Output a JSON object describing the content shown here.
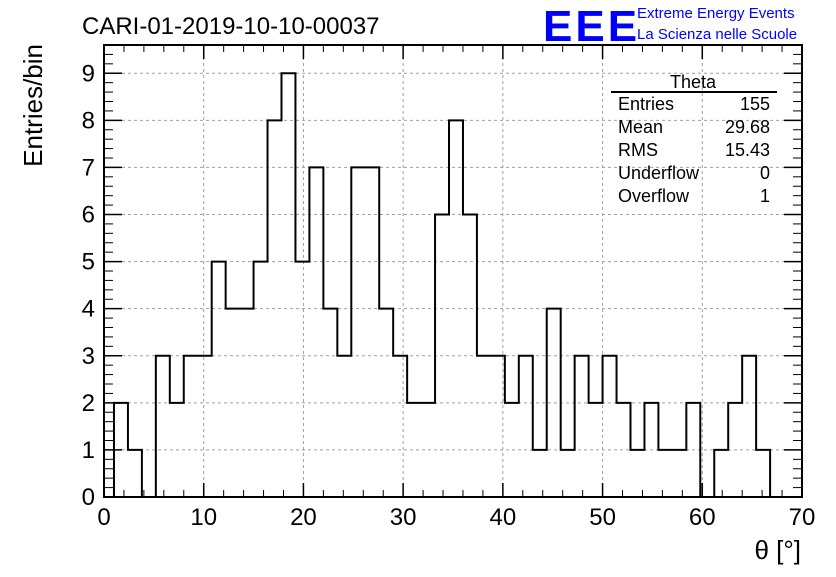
{
  "header": {
    "run_title": "CARI-01-2019-10-10-00037",
    "logo_text": "EEE",
    "logo_line1": "Extreme Energy Events",
    "logo_line2": "La Scienza nelle Scuole",
    "brand_color": "#0000ff"
  },
  "stats_box": {
    "title": "Theta",
    "rows": [
      {
        "label": "Entries",
        "value": "155"
      },
      {
        "label": "Mean",
        "value": "29.68"
      },
      {
        "label": "RMS",
        "value": "15.43"
      },
      {
        "label": "Underflow",
        "value": "0"
      },
      {
        "label": "Overflow",
        "value": "1"
      }
    ]
  },
  "chart_data": {
    "type": "bar",
    "style": "step-histogram",
    "title": "CARI-01-2019-10-10-00037",
    "xlabel": "θ [°]",
    "ylabel": "Entries/bin",
    "xlim": [
      0,
      70
    ],
    "ylim": [
      0,
      9.6
    ],
    "bin_width": 1.4,
    "bin_edges_start": 1,
    "values": [
      2,
      1,
      0,
      3,
      2,
      3,
      3,
      5,
      4,
      4,
      5,
      8,
      9,
      5,
      7,
      4,
      3,
      7,
      7,
      4,
      3,
      2,
      2,
      6,
      8,
      6,
      3,
      3,
      2,
      3,
      1,
      4,
      1,
      3,
      2,
      3,
      2,
      1,
      2,
      1,
      1,
      2,
      0,
      1,
      2,
      3,
      1
    ],
    "xticks": [
      0,
      10,
      20,
      30,
      40,
      50,
      60,
      70
    ],
    "yticks": [
      0,
      1,
      2,
      3,
      4,
      5,
      6,
      7,
      8,
      9
    ],
    "grid": true,
    "line_color": "#000000"
  }
}
